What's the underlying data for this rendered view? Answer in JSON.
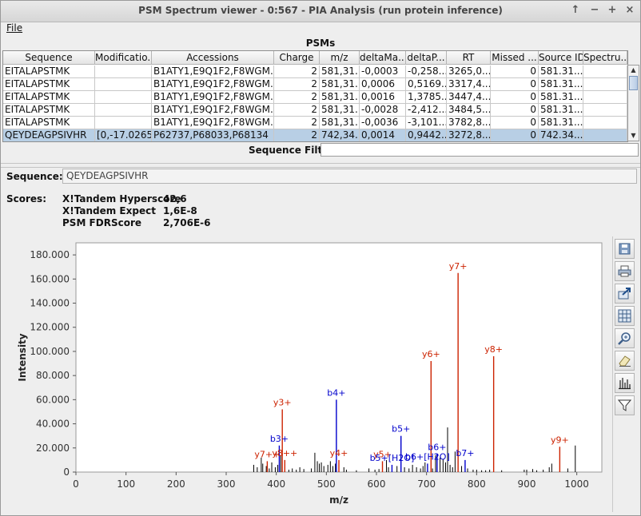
{
  "window": {
    "title": "PSM Spectrum viewer - 0:567 - PIA Analysis (run protein inference)"
  },
  "menu": {
    "file": "File"
  },
  "psm_panel": {
    "title": "PSMs",
    "columns": [
      "Sequence",
      "Modificatio...",
      "Accessions",
      "Charge",
      "m/z",
      "deltaMa...",
      "deltaP...",
      "RT",
      "Missed ...",
      "Source ID",
      "Spectru..."
    ],
    "rows": [
      [
        "EITALAPSTMK",
        "",
        "B1ATY1,E9Q1F2,F8WGM...",
        "2",
        "581,31...",
        "-0,0003",
        "-0,258...",
        "3265,0...",
        "0",
        "581.31...",
        ""
      ],
      [
        "EITALAPSTMK",
        "",
        "B1ATY1,E9Q1F2,F8WGM...",
        "2",
        "581,31...",
        "0,0006",
        "0,5169...",
        "3317,4...",
        "0",
        "581.31...",
        ""
      ],
      [
        "EITALAPSTMK",
        "",
        "B1ATY1,E9Q1F2,F8WGM...",
        "2",
        "581,31...",
        "0,0016",
        "1,3785...",
        "3447,4...",
        "0",
        "581.31...",
        ""
      ],
      [
        "EITALAPSTMK",
        "",
        "B1ATY1,E9Q1F2,F8WGM...",
        "2",
        "581,31...",
        "-0,0028",
        "-2,412...",
        "3484,5...",
        "0",
        "581.31...",
        ""
      ],
      [
        "EITALAPSTMK",
        "",
        "B1ATY1,E9Q1F2,F8WGM...",
        "2",
        "581,31...",
        "-0,0036",
        "-3,101...",
        "3782,8...",
        "0",
        "581.31...",
        ""
      ],
      [
        "QEYDEAGPSIVHR",
        "[0,-17.0265]",
        "P62737,P68033,P68134",
        "2",
        "742,34...",
        "0,0014",
        "0,9442...",
        "3272,8...",
        "0",
        "742.34...",
        ""
      ]
    ],
    "selected_row": 5,
    "filter_label": "Sequence Filter:",
    "filter_value": ""
  },
  "details": {
    "sequence_label": "Sequence:",
    "sequence_value": "QEYDEAGPSIVHR",
    "scores_label": "Scores:",
    "scores": [
      {
        "name": "X!Tandem Hyperscore",
        "value": "42,6"
      },
      {
        "name": "X!Tandem Expect",
        "value": "1,6E-8"
      },
      {
        "name": "PSM FDRScore",
        "value": "2,706E-6"
      }
    ]
  },
  "toolbar": {
    "icons": [
      "save-icon",
      "print-icon",
      "export-icon",
      "grid-icon",
      "zoom-icon",
      "eraser-icon",
      "peaks-icon",
      "filter-icon"
    ]
  },
  "chart_data": {
    "type": "bar",
    "xlabel": "m/z",
    "ylabel": "Intensity",
    "xlim": [
      0,
      1050
    ],
    "ylim": [
      0,
      190000
    ],
    "xticks": [
      "0",
      "100",
      "200",
      "300",
      "400",
      "500",
      "600",
      "700",
      "800",
      "900",
      "1000"
    ],
    "yticks": [
      "0",
      "20.000",
      "40.000",
      "60.000",
      "80.000",
      "100.000",
      "120.000",
      "140.000",
      "160.000",
      "180.000"
    ],
    "colors": {
      "y_ion": "#cc2200",
      "b_ion": "#0000cc",
      "peak": "#000000"
    },
    "annotated_peaks": [
      {
        "mz": 763,
        "intensity": 165000,
        "label": "y7+",
        "series": "y"
      },
      {
        "mz": 834,
        "intensity": 96000,
        "label": "y8+",
        "series": "y"
      },
      {
        "mz": 709,
        "intensity": 92000,
        "label": "y6+",
        "series": "y"
      },
      {
        "mz": 412,
        "intensity": 52000,
        "label": "y3+",
        "series": "y"
      },
      {
        "mz": 520,
        "intensity": 60000,
        "label": "b4+",
        "series": "b"
      },
      {
        "mz": 649,
        "intensity": 30000,
        "label": "b5+",
        "series": "b"
      },
      {
        "mz": 406,
        "intensity": 22000,
        "label": "b3+",
        "series": "b"
      },
      {
        "mz": 721,
        "intensity": 15000,
        "label": "b6+",
        "series": "b"
      },
      {
        "mz": 777,
        "intensity": 10000,
        "label": "b7+",
        "series": "b"
      },
      {
        "mz": 966,
        "intensity": 21000,
        "label": "y9+",
        "series": "y"
      },
      {
        "mz": 525,
        "intensity": 10000,
        "label": "y4+",
        "series": "y"
      },
      {
        "mz": 382,
        "intensity": 9000,
        "label": "y7++",
        "series": "y"
      },
      {
        "mz": 417,
        "intensity": 10000,
        "label": "y8++",
        "series": "y"
      },
      {
        "mz": 612,
        "intensity": 9000,
        "label": "y5+",
        "series": "y"
      },
      {
        "mz": 631,
        "intensity": 6000,
        "label": "b5+[H2O]",
        "series": "b"
      },
      {
        "mz": 702,
        "intensity": 7000,
        "label": "b6+[H2O]",
        "series": "b"
      }
    ],
    "peaks": [
      [
        355,
        6000
      ],
      [
        362,
        4000
      ],
      [
        370,
        12000
      ],
      [
        373,
        7000
      ],
      [
        380,
        5000
      ],
      [
        386,
        3000
      ],
      [
        391,
        8000
      ],
      [
        398,
        4000
      ],
      [
        403,
        6000
      ],
      [
        409,
        14000
      ],
      [
        425,
        2000
      ],
      [
        432,
        3000
      ],
      [
        440,
        2000
      ],
      [
        447,
        4000
      ],
      [
        455,
        2500
      ],
      [
        470,
        3000
      ],
      [
        477,
        16000
      ],
      [
        482,
        9000
      ],
      [
        486,
        7000
      ],
      [
        490,
        8000
      ],
      [
        495,
        5000
      ],
      [
        503,
        6000
      ],
      [
        508,
        9000
      ],
      [
        513,
        5000
      ],
      [
        518,
        7000
      ],
      [
        535,
        4000
      ],
      [
        540,
        2000
      ],
      [
        560,
        1500
      ],
      [
        585,
        3000
      ],
      [
        597,
        2000
      ],
      [
        605,
        2500
      ],
      [
        620,
        10000
      ],
      [
        624,
        4000
      ],
      [
        641,
        5000
      ],
      [
        656,
        4000
      ],
      [
        665,
        3000
      ],
      [
        672,
        6000
      ],
      [
        680,
        4000
      ],
      [
        688,
        3000
      ],
      [
        693,
        5000
      ],
      [
        697,
        8000
      ],
      [
        712,
        3000
      ],
      [
        718,
        14000
      ],
      [
        727,
        12000
      ],
      [
        733,
        11000
      ],
      [
        738,
        8000
      ],
      [
        742,
        37000
      ],
      [
        747,
        6000
      ],
      [
        752,
        4000
      ],
      [
        757,
        17000
      ],
      [
        770,
        5000
      ],
      [
        782,
        3000
      ],
      [
        793,
        2000
      ],
      [
        800,
        2000
      ],
      [
        810,
        1500
      ],
      [
        818,
        1500
      ],
      [
        826,
        2000
      ],
      [
        850,
        1500
      ],
      [
        895,
        2000
      ],
      [
        900,
        2000
      ],
      [
        912,
        2500
      ],
      [
        920,
        1500
      ],
      [
        933,
        2000
      ],
      [
        945,
        4000
      ],
      [
        950,
        7000
      ],
      [
        982,
        3000
      ],
      [
        997,
        22000
      ]
    ]
  }
}
